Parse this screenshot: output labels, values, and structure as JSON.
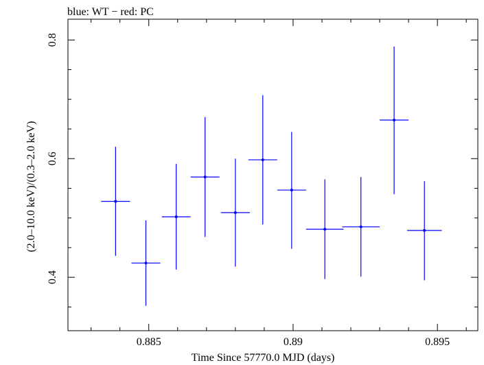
{
  "header": {
    "legend_text": "blue: WT − red: PC"
  },
  "chart_data": {
    "type": "scatter",
    "title": "",
    "xlabel": "Time Since 57770.0 MJD (days)",
    "ylabel": "(2.0–10.0 keV)/(0.3–2.0 keV)",
    "xlim": [
      0.8822,
      0.8964
    ],
    "ylim": [
      0.31,
      0.835
    ],
    "xticks": [
      {
        "value": 0.885,
        "label": "0.885"
      },
      {
        "value": 0.89,
        "label": "0.89"
      },
      {
        "value": 0.895,
        "label": "0.895"
      }
    ],
    "yticks": [
      {
        "value": 0.4,
        "label": "0.4"
      },
      {
        "value": 0.6,
        "label": "0.6"
      },
      {
        "value": 0.8,
        "label": "0.8"
      }
    ],
    "x_minor_step": 0.001,
    "y_minor_step": 0.05,
    "grid": false,
    "series": [
      {
        "color": "#0000ff",
        "points": [
          {
            "x": 0.88385,
            "xerr": 0.0005,
            "y": 0.528,
            "y_lo": 0.436,
            "y_hi": 0.62
          },
          {
            "x": 0.8849,
            "xerr": 0.0005,
            "y": 0.424,
            "y_lo": 0.352,
            "y_hi": 0.496
          },
          {
            "x": 0.88595,
            "xerr": 0.0005,
            "y": 0.502,
            "y_lo": 0.413,
            "y_hi": 0.591
          },
          {
            "x": 0.88695,
            "xerr": 0.0005,
            "y": 0.569,
            "y_lo": 0.468,
            "y_hi": 0.67
          },
          {
            "x": 0.888,
            "xerr": 0.0005,
            "y": 0.509,
            "y_lo": 0.418,
            "y_hi": 0.6
          },
          {
            "x": 0.88895,
            "xerr": 0.0005,
            "y": 0.598,
            "y_lo": 0.489,
            "y_hi": 0.707
          },
          {
            "x": 0.88995,
            "xerr": 0.0005,
            "y": 0.547,
            "y_lo": 0.448,
            "y_hi": 0.645
          },
          {
            "x": 0.8911,
            "xerr": 0.00065,
            "y": 0.481,
            "y_lo": 0.397,
            "y_hi": 0.565
          },
          {
            "x": 0.89235,
            "xerr": 0.00065,
            "y": 0.485,
            "y_lo": 0.401,
            "y_hi": 0.569
          },
          {
            "x": 0.8935,
            "xerr": 0.0005,
            "y": 0.665,
            "y_lo": 0.54,
            "y_hi": 0.789
          },
          {
            "x": 0.89455,
            "xerr": 0.0006,
            "y": 0.479,
            "y_lo": 0.395,
            "y_hi": 0.562
          }
        ]
      }
    ]
  }
}
